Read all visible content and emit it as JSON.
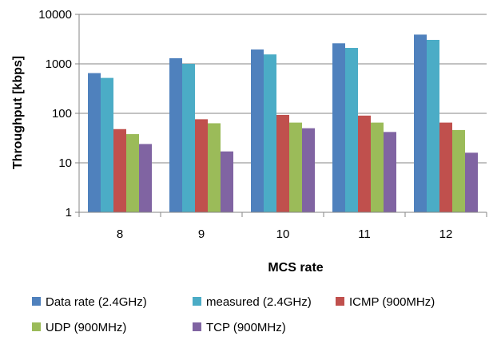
{
  "chart_data": {
    "type": "bar",
    "title": "",
    "xlabel": "MCS rate",
    "ylabel": "Throughput [kbps]",
    "y_scale": "log",
    "ylim": [
      1,
      10000
    ],
    "y_ticks": [
      1,
      10,
      100,
      1000,
      10000
    ],
    "y_tick_labels": [
      "1",
      "10",
      "100",
      "1000",
      "10000"
    ],
    "grid": "horizontal",
    "legend_position": "bottom",
    "categories": [
      "8",
      "9",
      "10",
      "11",
      "12"
    ],
    "series": [
      {
        "name": "Data rate (2.4GHz)",
        "color": "#4F81BD",
        "values": [
          650,
          1300,
          1950,
          2600,
          3900
        ]
      },
      {
        "name": "measured (2.4GHz)",
        "color": "#4BACC6",
        "values": [
          520,
          1000,
          1550,
          2100,
          3050
        ]
      },
      {
        "name": "ICMP (900MHz)",
        "color": "#C0504D",
        "values": [
          48,
          76,
          93,
          90,
          65
        ]
      },
      {
        "name": "UDP (900MHz)",
        "color": "#9BBB59",
        "values": [
          38,
          63,
          65,
          65,
          46
        ]
      },
      {
        "name": "TCP (900MHz)",
        "color": "#8064A2",
        "values": [
          24,
          17,
          50,
          42,
          16
        ]
      }
    ]
  }
}
